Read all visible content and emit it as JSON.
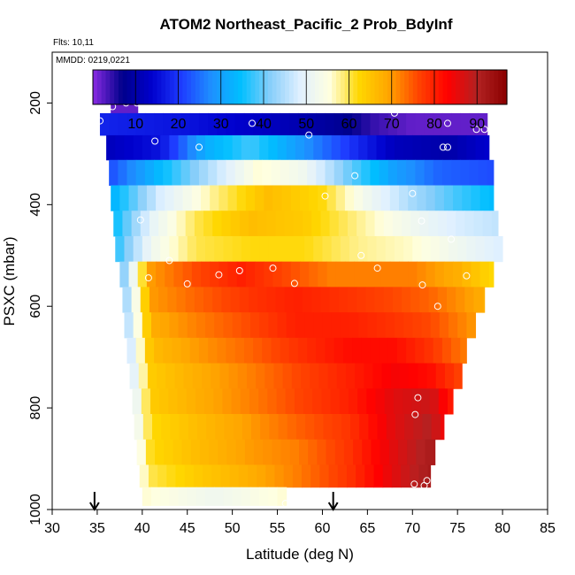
{
  "chart_data": {
    "type": "heatmap",
    "title": "ATOM2 Northeast_Pacific_2 Prob_BdyInf",
    "annotations": {
      "flts": "Flts: 10,11",
      "mmdd": "MMDD: 0219,0221"
    },
    "xlabel": "Latitude (deg N)",
    "ylabel": "PSXC (mbar)",
    "xlim": [
      30,
      85
    ],
    "ylim": [
      1000,
      100
    ],
    "y_inverted": true,
    "x_ticks": [
      30,
      35,
      40,
      45,
      50,
      55,
      60,
      65,
      70,
      75,
      80,
      85
    ],
    "x_tick_labels": [
      "30",
      "35",
      "40",
      "45",
      "50",
      "55",
      "60",
      "65",
      "70",
      "75",
      "80",
      "85"
    ],
    "y_ticks": [
      200,
      400,
      600,
      800,
      1000
    ],
    "y_tick_labels": [
      "200",
      "400",
      "600",
      "800",
      "1000"
    ],
    "colorbar": {
      "range": [
        0,
        97
      ],
      "ticks": [
        10,
        20,
        30,
        40,
        50,
        60,
        70,
        80,
        90
      ],
      "tick_labels": [
        "10",
        "20",
        "30",
        "40",
        "50",
        "60",
        "70",
        "80",
        "90"
      ],
      "colors": [
        "#8a2be2",
        "#00008b",
        "#0000cd",
        "#1e3cff",
        "#1e90ff",
        "#00bfff",
        "#87cefa",
        "#e0f0ff",
        "#ffffe0",
        "#ffd700",
        "#ffa500",
        "#ff4500",
        "#ff0000",
        "#b22222",
        "#8b0000"
      ]
    },
    "layers": [
      {
        "p": 200,
        "lat_min": 36.5,
        "lat_max": 39.5,
        "values": [
          [
            36.5,
            2
          ],
          [
            39.5,
            2
          ]
        ]
      },
      {
        "p": 240,
        "lat_min": 35.3,
        "lat_max": 78.3,
        "values": [
          [
            35.3,
            18
          ],
          [
            45,
            16
          ],
          [
            55,
            12
          ],
          [
            62,
            8
          ],
          [
            66,
            4
          ],
          [
            70,
            2
          ],
          [
            78.3,
            2
          ]
        ]
      },
      {
        "p": 287,
        "lat_min": 36.0,
        "lat_max": 78.5,
        "values": [
          [
            36,
            12
          ],
          [
            42,
            16
          ],
          [
            47,
            32
          ],
          [
            52,
            38
          ],
          [
            57,
            30
          ],
          [
            63,
            20
          ],
          [
            68,
            12
          ],
          [
            74,
            10
          ],
          [
            78.5,
            14
          ]
        ]
      },
      {
        "p": 337,
        "lat_min": 36.3,
        "lat_max": 79.0,
        "values": [
          [
            36.3,
            22
          ],
          [
            42,
            34
          ],
          [
            48,
            46
          ],
          [
            53,
            56
          ],
          [
            58,
            52
          ],
          [
            63,
            40
          ],
          [
            68,
            30
          ],
          [
            73,
            24
          ],
          [
            79,
            22
          ]
        ]
      },
      {
        "p": 387,
        "lat_min": 36.5,
        "lat_max": 79.0,
        "values": [
          [
            36.5,
            32
          ],
          [
            42,
            48
          ],
          [
            48,
            58
          ],
          [
            54,
            66
          ],
          [
            60,
            62
          ],
          [
            65,
            52
          ],
          [
            70,
            44
          ],
          [
            75,
            38
          ],
          [
            79,
            34
          ]
        ]
      },
      {
        "p": 437,
        "lat_min": 36.8,
        "lat_max": 79.5,
        "values": [
          [
            36.8,
            34
          ],
          [
            41,
            50
          ],
          [
            46,
            60
          ],
          [
            52,
            66
          ],
          [
            58,
            64
          ],
          [
            64,
            58
          ],
          [
            70,
            52
          ],
          [
            75,
            48
          ],
          [
            79.5,
            46
          ]
        ]
      },
      {
        "p": 487,
        "lat_min": 37.0,
        "lat_max": 80.0,
        "values": [
          [
            37,
            36
          ],
          [
            41,
            52
          ],
          [
            46,
            60
          ],
          [
            52,
            62
          ],
          [
            58,
            62
          ],
          [
            64,
            58
          ],
          [
            70,
            56
          ],
          [
            75,
            52
          ],
          [
            80,
            48
          ]
        ]
      },
      {
        "p": 537,
        "lat_min": 37.5,
        "lat_max": 79.0,
        "values": [
          [
            37.5,
            38
          ],
          [
            41,
            70
          ],
          [
            46,
            76
          ],
          [
            51,
            80
          ],
          [
            56,
            76
          ],
          [
            61,
            72
          ],
          [
            66,
            72
          ],
          [
            70,
            72
          ],
          [
            75,
            68
          ],
          [
            79,
            62
          ]
        ]
      },
      {
        "p": 587,
        "lat_min": 37.8,
        "lat_max": 78.0,
        "values": [
          [
            37.8,
            40
          ],
          [
            41,
            70
          ],
          [
            46,
            74
          ],
          [
            52,
            78
          ],
          [
            57,
            80
          ],
          [
            63,
            78
          ],
          [
            68,
            76
          ],
          [
            72,
            74
          ],
          [
            78,
            68
          ]
        ]
      },
      {
        "p": 637,
        "lat_min": 38.0,
        "lat_max": 77.0,
        "values": [
          [
            38,
            42
          ],
          [
            41,
            68
          ],
          [
            46,
            72
          ],
          [
            52,
            76
          ],
          [
            57,
            80
          ],
          [
            63,
            80
          ],
          [
            68,
            78
          ],
          [
            72,
            76
          ],
          [
            77,
            70
          ]
        ]
      },
      {
        "p": 687,
        "lat_min": 38.3,
        "lat_max": 76.0,
        "values": [
          [
            38.3,
            44
          ],
          [
            41,
            66
          ],
          [
            46,
            70
          ],
          [
            52,
            74
          ],
          [
            57,
            78
          ],
          [
            63,
            82
          ],
          [
            68,
            82
          ],
          [
            72,
            78
          ],
          [
            76,
            72
          ]
        ]
      },
      {
        "p": 737,
        "lat_min": 38.6,
        "lat_max": 75.5,
        "values": [
          [
            38.6,
            46
          ],
          [
            41,
            64
          ],
          [
            46,
            68
          ],
          [
            52,
            72
          ],
          [
            57,
            76
          ],
          [
            63,
            80
          ],
          [
            68,
            84
          ],
          [
            72,
            82
          ],
          [
            75.5,
            76
          ]
        ]
      },
      {
        "p": 787,
        "lat_min": 38.9,
        "lat_max": 74.5,
        "values": [
          [
            38.9,
            48
          ],
          [
            41,
            64
          ],
          [
            46,
            68
          ],
          [
            52,
            72
          ],
          [
            57,
            76
          ],
          [
            63,
            80
          ],
          [
            68,
            86
          ],
          [
            72,
            88
          ],
          [
            74.5,
            80
          ]
        ]
      },
      {
        "p": 837,
        "lat_min": 39.1,
        "lat_max": 73.5,
        "values": [
          [
            39.1,
            50
          ],
          [
            41,
            62
          ],
          [
            46,
            66
          ],
          [
            52,
            70
          ],
          [
            57,
            74
          ],
          [
            63,
            78
          ],
          [
            68,
            86
          ],
          [
            72,
            90
          ],
          [
            73.5,
            84
          ]
        ]
      },
      {
        "p": 887,
        "lat_min": 39.4,
        "lat_max": 72.5,
        "values": [
          [
            39.4,
            52
          ],
          [
            41,
            62
          ],
          [
            46,
            66
          ],
          [
            52,
            70
          ],
          [
            57,
            72
          ],
          [
            63,
            78
          ],
          [
            68,
            86
          ],
          [
            72.5,
            92
          ]
        ]
      },
      {
        "p": 937,
        "lat_min": 39.7,
        "lat_max": 72.0,
        "values": [
          [
            39.7,
            54
          ],
          [
            41,
            60
          ],
          [
            46,
            64
          ],
          [
            52,
            68
          ],
          [
            57,
            72
          ],
          [
            63,
            78
          ],
          [
            68,
            86
          ],
          [
            72,
            92
          ]
        ]
      },
      {
        "p": 975,
        "lat_min": 40.0,
        "lat_max": 56.0,
        "values": [
          [
            40,
            56
          ],
          [
            44,
            54
          ],
          [
            48,
            52
          ],
          [
            52,
            54
          ],
          [
            56,
            56
          ]
        ]
      }
    ],
    "markers": [
      [
        35.3,
        235
      ],
      [
        36.7,
        207
      ],
      [
        38.2,
        200
      ],
      [
        39.4,
        200
      ],
      [
        52.2,
        240
      ],
      [
        58.5,
        263
      ],
      [
        68.0,
        220
      ],
      [
        73.9,
        240
      ],
      [
        77.1,
        252
      ],
      [
        78.0,
        252
      ],
      [
        41.4,
        275
      ],
      [
        46.3,
        287
      ],
      [
        73.4,
        287
      ],
      [
        73.9,
        287
      ],
      [
        63.6,
        343
      ],
      [
        70.0,
        378
      ],
      [
        60.3,
        383
      ],
      [
        39.8,
        430
      ],
      [
        71.0,
        432
      ],
      [
        74.3,
        468
      ],
      [
        43.0,
        510
      ],
      [
        64.3,
        500
      ],
      [
        40.7,
        544
      ],
      [
        45.0,
        556
      ],
      [
        48.5,
        538
      ],
      [
        50.8,
        530
      ],
      [
        54.5,
        525
      ],
      [
        56.9,
        555
      ],
      [
        66.1,
        525
      ],
      [
        71.1,
        558
      ],
      [
        76.0,
        540
      ],
      [
        72.8,
        600
      ],
      [
        70.6,
        780
      ],
      [
        70.3,
        813
      ],
      [
        70.2,
        950
      ],
      [
        71.6,
        943
      ],
      [
        71.3,
        953
      ],
      [
        55.9,
        988
      ]
    ],
    "arrows": [
      34.7,
      61.2
    ]
  }
}
